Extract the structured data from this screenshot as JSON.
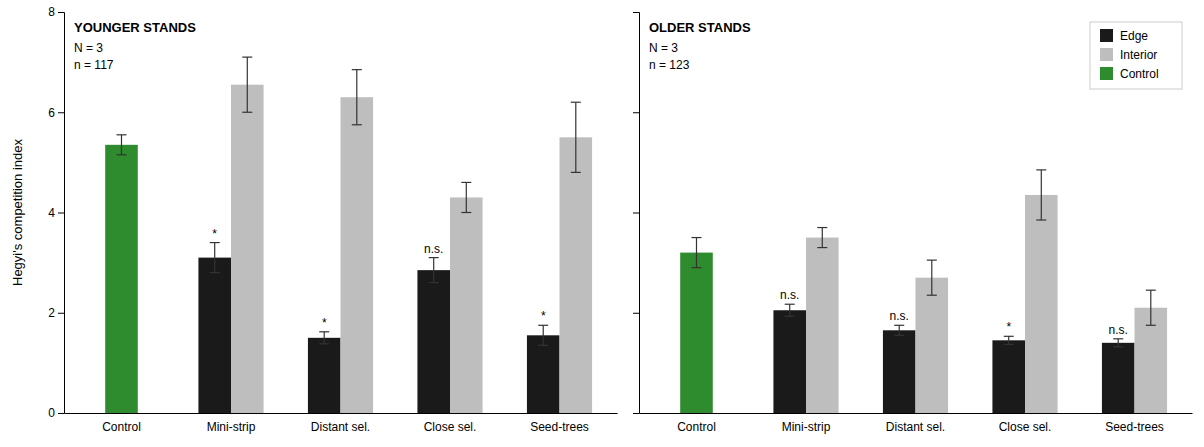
{
  "chart_data": [
    {
      "type": "bar",
      "title": "YOUNGER STANDS",
      "annotations": [
        "N = 3",
        "n = 117"
      ],
      "categories": [
        "Control",
        "Mini-strip",
        "Distant sel.",
        "Close sel.",
        "Seed-trees"
      ],
      "ylabel": "Hegyi's competition index",
      "ylim": [
        0,
        8
      ],
      "yticks": [
        0,
        2,
        4,
        6,
        8
      ],
      "series": [
        {
          "name": "Edge",
          "color": "#1a1a1a",
          "values": [
            null,
            3.1,
            1.5,
            2.85,
            1.55
          ],
          "errors": [
            null,
            0.3,
            0.12,
            0.25,
            0.2
          ],
          "significance": [
            null,
            "*",
            "*",
            "n.s.",
            "*"
          ]
        },
        {
          "name": "Interior",
          "color": "#bebebe",
          "values": [
            null,
            6.55,
            6.3,
            4.3,
            5.5
          ],
          "errors": [
            null,
            0.55,
            0.55,
            0.3,
            0.7
          ]
        },
        {
          "name": "Control",
          "color": "#2e8b2e",
          "values": [
            5.35,
            null,
            null,
            null,
            null
          ],
          "errors": [
            0.2,
            null,
            null,
            null,
            null
          ]
        }
      ]
    },
    {
      "type": "bar",
      "title": "OLDER STANDS",
      "annotations": [
        "N = 3",
        "n = 123"
      ],
      "categories": [
        "Control",
        "Mini-strip",
        "Distant sel.",
        "Close sel.",
        "Seed-trees"
      ],
      "ylim": [
        0,
        8
      ],
      "yticks": [
        0,
        2,
        4,
        6,
        8
      ],
      "legend": "upper right",
      "tick_labels": "x",
      "series": [
        {
          "name": "Edge",
          "color": "#1a1a1a",
          "values": [
            null,
            2.05,
            1.65,
            1.45,
            1.4
          ],
          "errors": [
            null,
            0.12,
            0.1,
            0.08,
            0.08
          ],
          "significance": [
            null,
            "n.s.",
            "n.s.",
            "*",
            "n.s."
          ]
        },
        {
          "name": "Interior",
          "color": "#bebebe",
          "values": [
            null,
            3.5,
            2.7,
            4.35,
            2.1
          ],
          "errors": [
            null,
            0.2,
            0.35,
            0.5,
            0.35
          ]
        },
        {
          "name": "Control",
          "color": "#2e8b2e",
          "values": [
            3.2,
            null,
            null,
            null,
            null
          ],
          "errors": [
            0.3,
            null,
            null,
            null,
            null
          ]
        }
      ]
    }
  ]
}
